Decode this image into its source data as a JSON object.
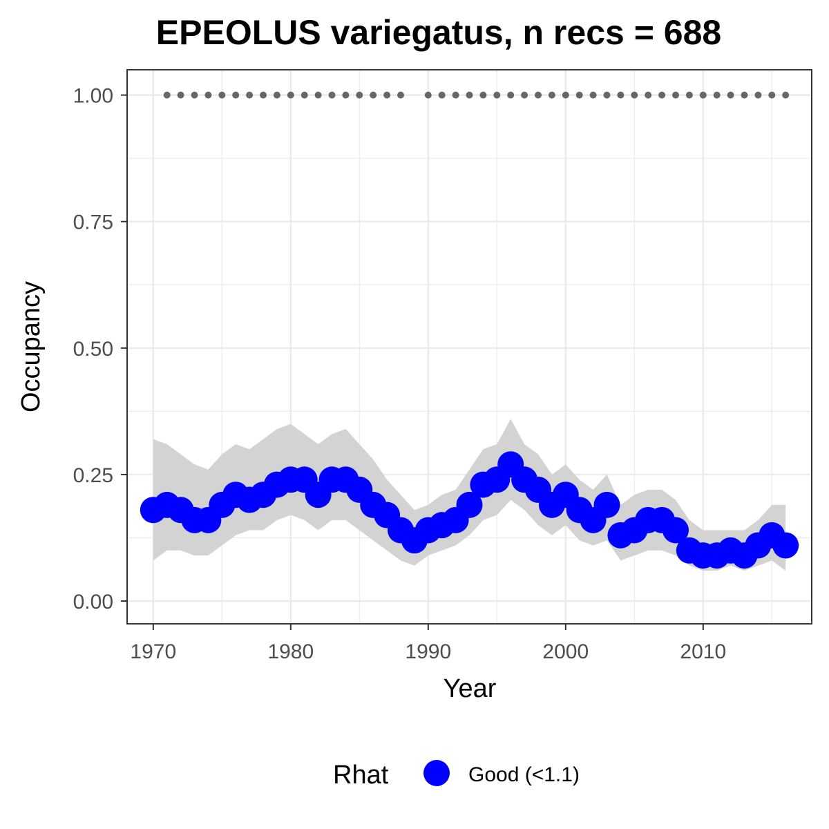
{
  "chart_data": {
    "type": "line",
    "title": "EPEOLUS variegatus, n recs = 688",
    "xlabel": "Year",
    "ylabel": "Occupancy",
    "xlim": [
      1968.1,
      2017.9
    ],
    "ylim": [
      -0.045,
      1.05
    ],
    "x_ticks": [
      1970,
      1980,
      1990,
      2000,
      2010
    ],
    "x_tick_labels": [
      "1970",
      "1980",
      "1990",
      "2000",
      "2010"
    ],
    "y_ticks": [
      0,
      0.25,
      0.5,
      0.75,
      1.0
    ],
    "y_tick_labels": [
      "0.00",
      "0.25",
      "0.50",
      "0.75",
      "1.00"
    ],
    "grid": true,
    "legend": {
      "title": "Rhat",
      "position": "bottom",
      "entries": [
        {
          "label": "Good (<1.1)",
          "color": "#0000ff"
        }
      ]
    },
    "colors": {
      "points": "#0000ff",
      "ribbon": "#d3d3d3",
      "record_dots": "#666666"
    },
    "series": [
      {
        "type": "points",
        "x": [
          1970,
          1971,
          1972,
          1973,
          1974,
          1975,
          1976,
          1977,
          1978,
          1979,
          1980,
          1981,
          1982,
          1983,
          1984,
          1985,
          1986,
          1987,
          1988,
          1989,
          1990,
          1991,
          1992,
          1993,
          1994,
          1995,
          1996,
          1997,
          1998,
          1999,
          2000,
          2001,
          2002,
          2003,
          2004,
          2005,
          2006,
          2007,
          2008,
          2009,
          2010,
          2011,
          2012,
          2013,
          2014,
          2015,
          2016
        ],
        "y": [
          0.18,
          0.19,
          0.18,
          0.16,
          0.16,
          0.19,
          0.21,
          0.2,
          0.21,
          0.23,
          0.24,
          0.24,
          0.21,
          0.24,
          0.24,
          0.22,
          0.19,
          0.17,
          0.14,
          0.12,
          0.14,
          0.15,
          0.16,
          0.19,
          0.23,
          0.24,
          0.27,
          0.24,
          0.22,
          0.19,
          0.21,
          0.18,
          0.16,
          0.19,
          0.13,
          0.14,
          0.16,
          0.16,
          0.14,
          0.1,
          0.09,
          0.09,
          0.1,
          0.09,
          0.11,
          0.13,
          0.11
        ]
      },
      {
        "type": "ribbon",
        "x": [
          1970,
          1971,
          1972,
          1973,
          1974,
          1975,
          1976,
          1977,
          1978,
          1979,
          1980,
          1981,
          1982,
          1983,
          1984,
          1985,
          1986,
          1987,
          1988,
          1989,
          1990,
          1991,
          1992,
          1993,
          1994,
          1995,
          1996,
          1997,
          1998,
          1999,
          2000,
          2001,
          2002,
          2003,
          2004,
          2005,
          2006,
          2007,
          2008,
          2009,
          2010,
          2011,
          2012,
          2013,
          2014,
          2015,
          2016
        ],
        "upper": [
          0.32,
          0.31,
          0.29,
          0.27,
          0.26,
          0.29,
          0.31,
          0.3,
          0.32,
          0.34,
          0.35,
          0.33,
          0.31,
          0.33,
          0.34,
          0.31,
          0.28,
          0.24,
          0.21,
          0.18,
          0.19,
          0.21,
          0.22,
          0.26,
          0.3,
          0.31,
          0.36,
          0.31,
          0.29,
          0.25,
          0.27,
          0.24,
          0.22,
          0.25,
          0.19,
          0.21,
          0.22,
          0.22,
          0.2,
          0.16,
          0.14,
          0.14,
          0.14,
          0.14,
          0.16,
          0.19,
          0.19
        ],
        "lower": [
          0.08,
          0.1,
          0.1,
          0.09,
          0.09,
          0.11,
          0.13,
          0.14,
          0.14,
          0.16,
          0.17,
          0.16,
          0.14,
          0.16,
          0.16,
          0.14,
          0.12,
          0.1,
          0.08,
          0.07,
          0.09,
          0.1,
          0.11,
          0.13,
          0.16,
          0.17,
          0.2,
          0.18,
          0.15,
          0.13,
          0.15,
          0.12,
          0.11,
          0.12,
          0.08,
          0.09,
          0.1,
          0.1,
          0.09,
          0.07,
          0.06,
          0.06,
          0.07,
          0.06,
          0.07,
          0.08,
          0.06
        ]
      },
      {
        "type": "record_dots",
        "y": 1.0,
        "x": [
          1971,
          1972,
          1973,
          1974,
          1975,
          1976,
          1977,
          1978,
          1979,
          1980,
          1981,
          1982,
          1983,
          1984,
          1985,
          1986,
          1987,
          1988,
          1990,
          1991,
          1992,
          1993,
          1994,
          1995,
          1996,
          1997,
          1998,
          1999,
          2000,
          2001,
          2002,
          2003,
          2004,
          2005,
          2006,
          2007,
          2008,
          2009,
          2010,
          2011,
          2012,
          2013,
          2014,
          2015,
          2016
        ]
      }
    ]
  }
}
